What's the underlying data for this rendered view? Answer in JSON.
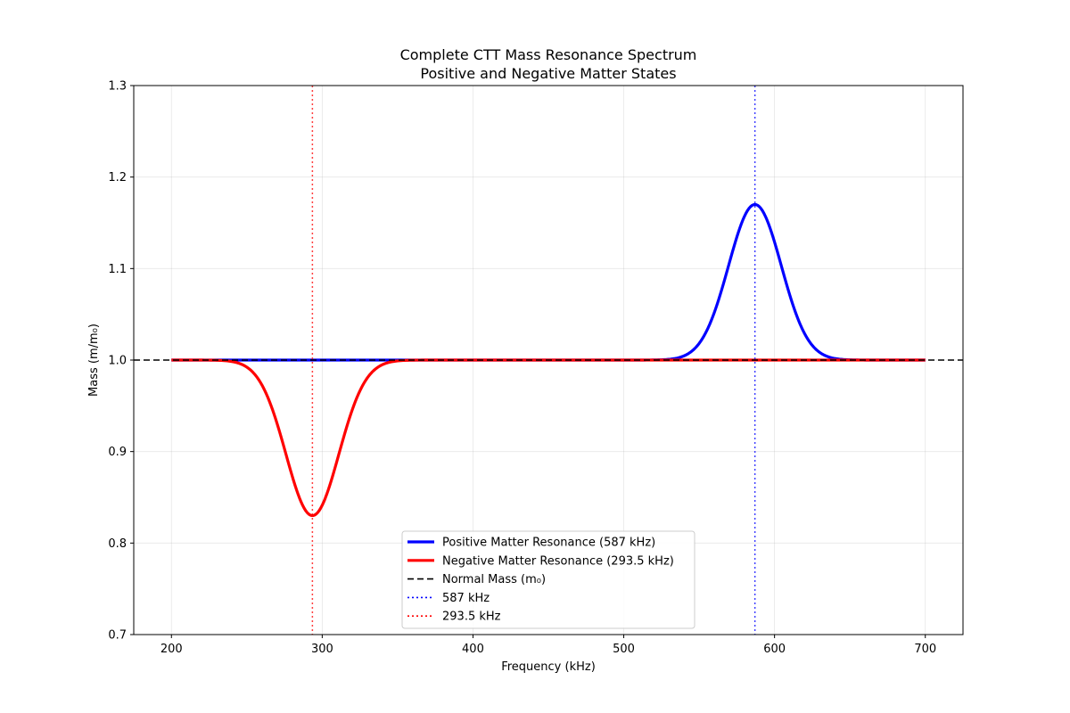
{
  "chart_data": {
    "type": "line",
    "title": "Complete CTT Mass Resonance Spectrum",
    "subtitle": "Positive and Negative Matter States",
    "xlabel": "Frequency (kHz)",
    "ylabel": "Mass (m/m₀)",
    "xlim": [
      175,
      725
    ],
    "ylim": [
      0.7,
      1.3
    ],
    "xticks": [
      200,
      300,
      400,
      500,
      600,
      700
    ],
    "yticks": [
      0.7,
      0.8,
      0.9,
      1.0,
      1.1,
      1.2,
      1.3
    ],
    "xtick_labels": [
      "200",
      "300",
      "400",
      "500",
      "600",
      "700"
    ],
    "ytick_labels": [
      "0.7",
      "0.8",
      "0.9",
      "1.0",
      "1.1",
      "1.2",
      "1.3"
    ],
    "grid": true,
    "legend_position": "lower center",
    "series": [
      {
        "name": "Positive Matter Resonance (587 kHz)",
        "color": "#0000ff",
        "style": "solid",
        "x_range": [
          200,
          700
        ],
        "baseline": 1.0,
        "peak_x": 587,
        "peak_y": 1.17,
        "width_sigma": 17.5,
        "samples": [
          [
            200,
            1.0
          ],
          [
            500,
            1.0
          ],
          [
            540,
            1.01
          ],
          [
            560,
            1.07
          ],
          [
            575,
            1.14
          ],
          [
            587,
            1.17
          ],
          [
            600,
            1.14
          ],
          [
            615,
            1.07
          ],
          [
            635,
            1.01
          ],
          [
            700,
            1.0
          ]
        ]
      },
      {
        "name": "Negative Matter Resonance (293.5 kHz)",
        "color": "#ff0000",
        "style": "solid",
        "x_range": [
          200,
          700
        ],
        "baseline": 1.0,
        "peak_x": 293.5,
        "peak_y": 0.83,
        "width_sigma": 17.5,
        "samples": [
          [
            200,
            1.0
          ],
          [
            240,
            1.0
          ],
          [
            260,
            0.97
          ],
          [
            275,
            0.9
          ],
          [
            293.5,
            0.83
          ],
          [
            310,
            0.89
          ],
          [
            325,
            0.96
          ],
          [
            345,
            1.0
          ],
          [
            700,
            1.0
          ]
        ]
      },
      {
        "name": "Normal Mass (m₀)",
        "color": "#000000",
        "style": "dashed",
        "y": 1.0
      },
      {
        "name": "587 kHz",
        "color": "#0000ff",
        "style": "dotted",
        "x": 587
      },
      {
        "name": "293.5 kHz",
        "color": "#ff0000",
        "style": "dotted",
        "x": 293.5
      }
    ]
  }
}
